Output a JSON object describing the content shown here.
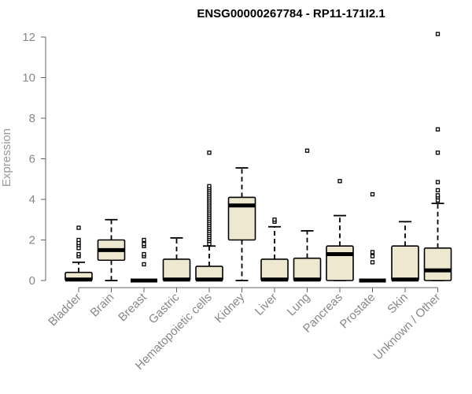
{
  "chart_data": {
    "type": "box",
    "title": "ENSG00000267784 - RP11-171I2.1",
    "xlabel": "",
    "ylabel": "Expression",
    "ylim": [
      0,
      12.4
    ],
    "yticks": [
      0,
      2,
      4,
      6,
      8,
      10,
      12
    ],
    "grid": false,
    "legend": "none",
    "box_fill": "#efe8d0",
    "box_stroke": "#000000",
    "categories": [
      "Bladder",
      "Brain",
      "Breast",
      "Gastric",
      "Hematopoietic cells",
      "Kidney",
      "Liver",
      "Lung",
      "Pancreas",
      "Prostate",
      "Skin",
      "Unknown / Other"
    ],
    "boxes": [
      {
        "category": "Bladder",
        "min": 0,
        "q1": 0,
        "median": 0.05,
        "q3": 0.4,
        "max": 0.9,
        "outliers": [
          1.2,
          1.3,
          1.6,
          1.75,
          1.85,
          2.0,
          2.6
        ]
      },
      {
        "category": "Brain",
        "min": 0,
        "q1": 1.0,
        "median": 1.5,
        "q3": 2.0,
        "max": 3.0,
        "outliers": []
      },
      {
        "category": "Breast",
        "min": 0,
        "q1": 0,
        "median": 0,
        "q3": 0,
        "max": 0,
        "outliers": [
          0.8,
          1.2,
          1.3,
          1.7,
          1.8,
          2.0
        ]
      },
      {
        "category": "Gastric",
        "min": 0,
        "q1": 0,
        "median": 0.05,
        "q3": 1.05,
        "max": 2.1,
        "outliers": []
      },
      {
        "category": "Hematopoietic cells",
        "min": 0,
        "q1": 0,
        "median": 0.05,
        "q3": 0.7,
        "max": 1.7,
        "outliers": [
          1.8,
          1.95,
          2.05,
          2.15,
          2.25,
          2.35,
          2.45,
          2.55,
          2.65,
          2.75,
          2.85,
          2.95,
          3.05,
          3.15,
          3.25,
          3.35,
          3.45,
          3.55,
          3.65,
          3.75,
          3.85,
          3.95,
          4.05,
          4.15,
          4.25,
          4.35,
          4.45,
          4.55,
          4.65,
          6.3
        ]
      },
      {
        "category": "Kidney",
        "min": 0,
        "q1": 2.0,
        "median": 3.7,
        "q3": 4.1,
        "max": 5.55,
        "outliers": []
      },
      {
        "category": "Liver",
        "min": 0,
        "q1": 0,
        "median": 0.05,
        "q3": 1.05,
        "max": 2.65,
        "outliers": [
          2.9,
          3.0
        ]
      },
      {
        "category": "Lung",
        "min": 0,
        "q1": 0,
        "median": 0.05,
        "q3": 1.1,
        "max": 2.45,
        "outliers": [
          6.4
        ]
      },
      {
        "category": "Pancreas",
        "min": 0,
        "q1": 0,
        "median": 1.3,
        "q3": 1.7,
        "max": 3.2,
        "outliers": [
          4.9
        ]
      },
      {
        "category": "Prostate",
        "min": 0,
        "q1": 0,
        "median": 0,
        "q3": 0,
        "max": 0,
        "outliers": [
          0.9,
          1.2,
          1.4,
          4.25
        ]
      },
      {
        "category": "Skin",
        "min": 0,
        "q1": 0,
        "median": 0.05,
        "q3": 1.7,
        "max": 2.9,
        "outliers": []
      },
      {
        "category": "Unknown / Other",
        "min": 0,
        "q1": 0,
        "median": 0.5,
        "q3": 1.6,
        "max": 3.8,
        "outliers": [
          3.95,
          4.1,
          4.2,
          4.45,
          4.85,
          6.3,
          7.45,
          12.15
        ]
      }
    ]
  }
}
